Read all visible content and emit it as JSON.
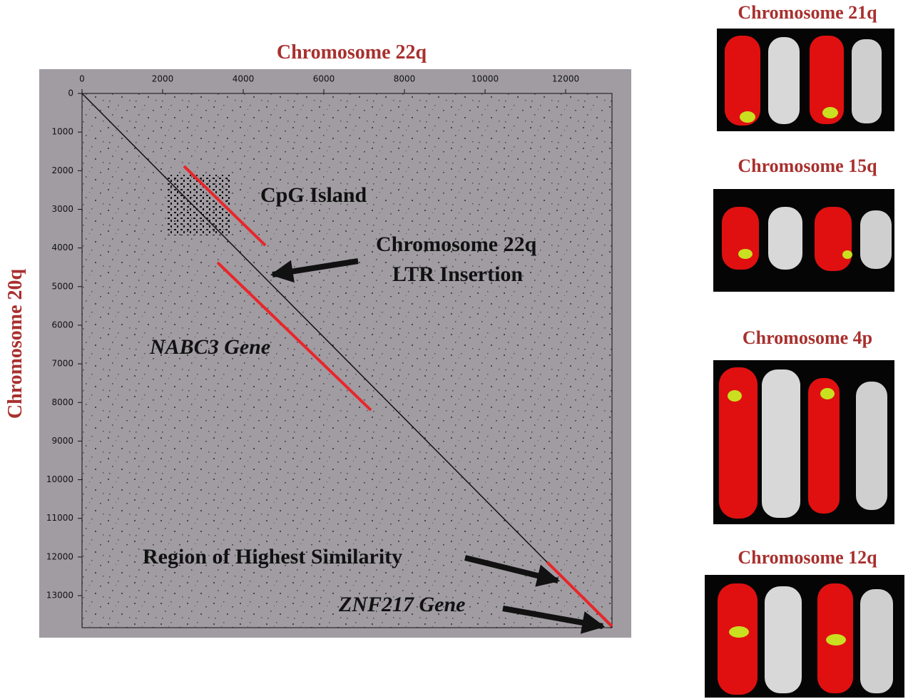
{
  "figure": {
    "dotplot": {
      "type": "scatter",
      "xlabel": "Chromosome 22q",
      "ylabel": "Chromosome 20q",
      "xlim": [
        0,
        13150
      ],
      "ylim": [
        0,
        13830
      ],
      "xticks": [
        0,
        2000,
        4000,
        6000,
        8000,
        10000,
        12000
      ],
      "yticks": [
        0,
        1000,
        2000,
        3000,
        4000,
        5000,
        6000,
        7000,
        8000,
        9000,
        10000,
        11000,
        12000,
        13000
      ],
      "series": [
        {
          "color": "#111111",
          "x": [
            0,
            13150
          ],
          "y": [
            0,
            13830
          ]
        },
        {
          "color": "#e8262a",
          "x": [
            2531,
            4549
          ],
          "y": [
            1884,
            3934
          ]
        },
        {
          "color": "#e8262a",
          "x": [
            7168,
            3363
          ],
          "y": [
            8199,
            4377
          ]
        },
        {
          "color": "#e8262a",
          "x": [
            11540,
            13150
          ],
          "y": [
            12133,
            13795
          ]
        }
      ],
      "annotations": [
        "CpG Island",
        "Chromosome 22q",
        "LTR Insertion",
        "NABC3 Gene",
        "Region of Highest Similarity",
        "ZNF217 Gene"
      ]
    },
    "panels": [
      {
        "title": "Chromosome 21q"
      },
      {
        "title": "Chromosome 15q"
      },
      {
        "title": "Chromosome 4p"
      },
      {
        "title": "Chromosome 12q"
      }
    ]
  }
}
